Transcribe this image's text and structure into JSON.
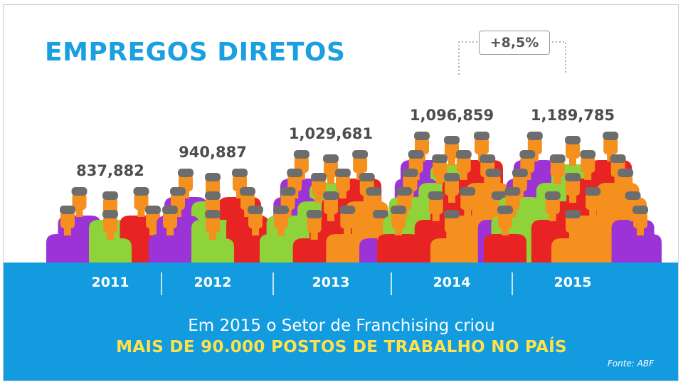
{
  "title": "EMPREGOS DIRETOS",
  "growth_label": "+8,5%",
  "footer": {
    "line1": "Em 2015 o Setor de Franchising criou",
    "line2": "MAIS DE 90.000 POSTOS DE TRABALHO NO PAÍS",
    "source": "Fonte: ABF"
  },
  "colors": {
    "accent_blue": "#139be0",
    "highlight_yellow": "#ffe14a",
    "figure_palette": [
      "#9b33d6",
      "#8fd33a",
      "#e82323",
      "#f5901e"
    ],
    "skin": "#f5901e",
    "hair": "#6d6d6d"
  },
  "chart_data": {
    "type": "bar",
    "title": "EMPREGOS DIRETOS",
    "categories": [
      "2011",
      "2012",
      "2013",
      "2014",
      "2015"
    ],
    "values": [
      837882,
      940887,
      1029681,
      1096859,
      1189785
    ],
    "value_labels": [
      "837,882",
      "940,887",
      "1,029,681",
      "1,096,859",
      "1,189,785"
    ],
    "xlabel": "",
    "ylabel": "",
    "legend": "none",
    "grid": false,
    "annotations": [
      "+8,5%"
    ]
  }
}
